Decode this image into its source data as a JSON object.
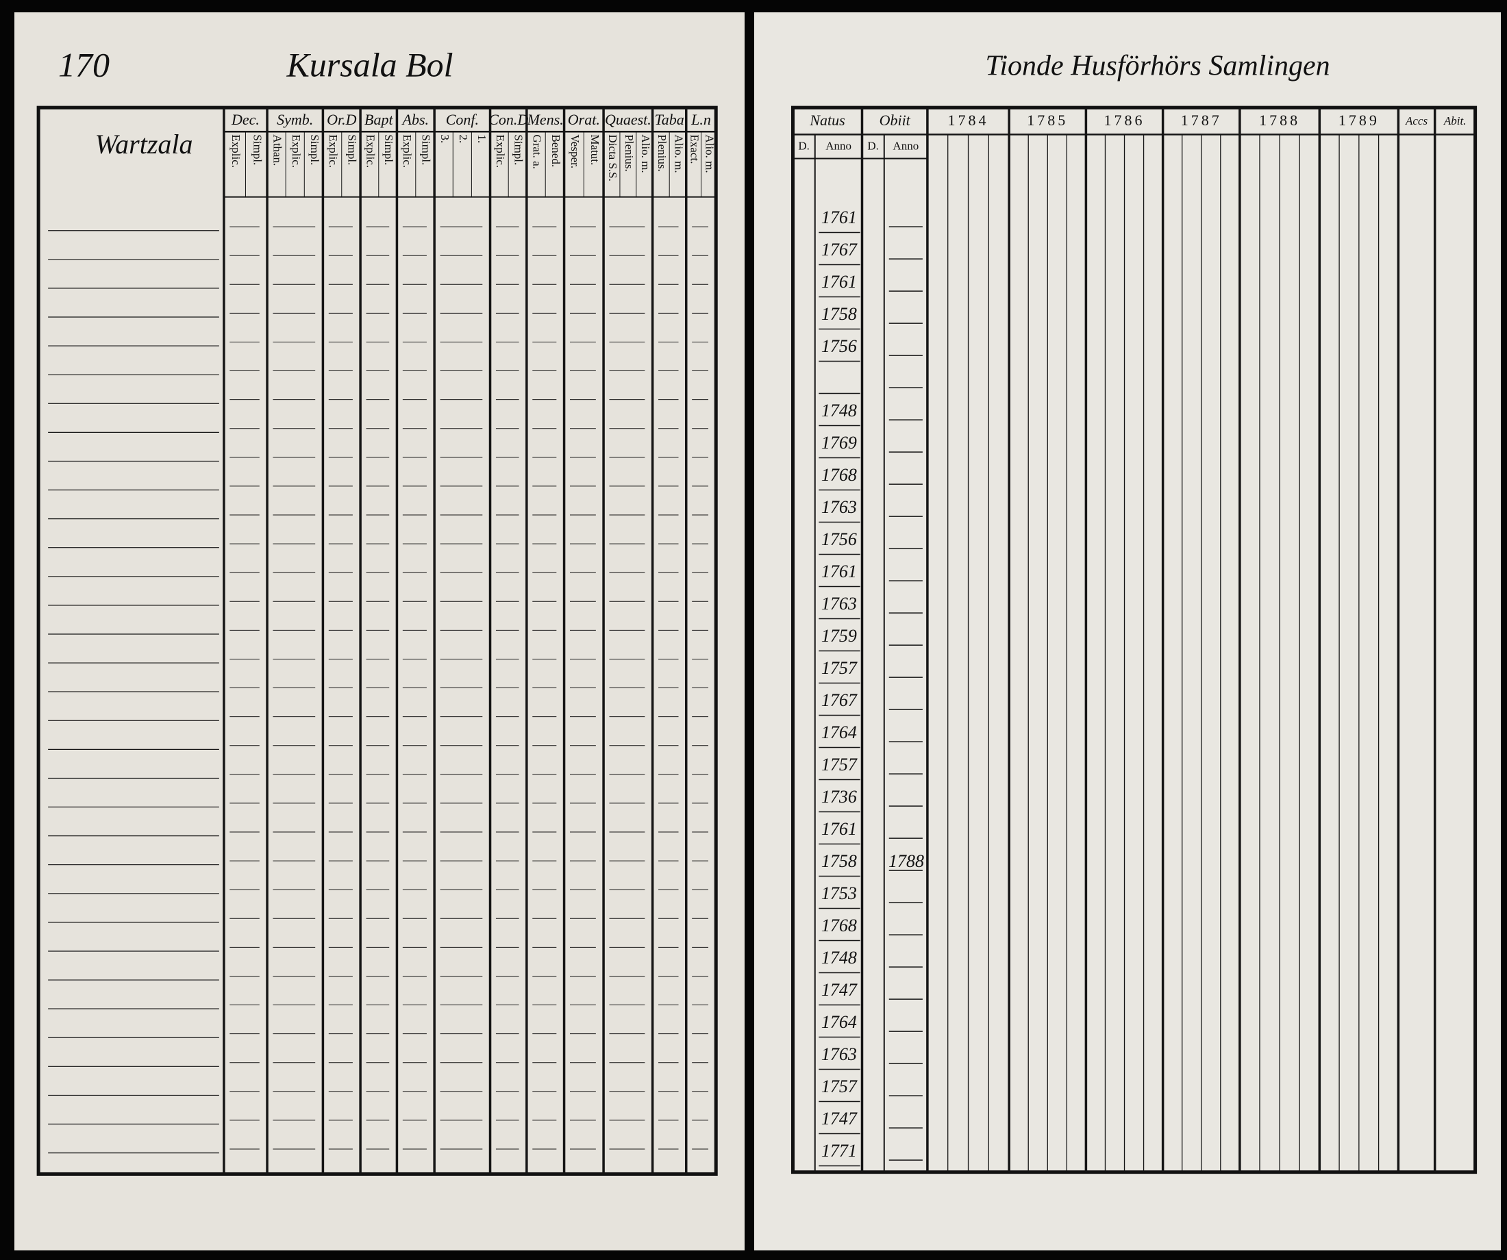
{
  "left_page": {
    "page_number": "170",
    "title": "Kursala Bol",
    "village": "Wartzala",
    "columns": [
      {
        "header": "Dec.",
        "sub": [
          "Explic.",
          "Simpl."
        ]
      },
      {
        "header": "Symb.",
        "sub": [
          "Athan.",
          "Explic.",
          "Simpl."
        ]
      },
      {
        "header": "Or.D",
        "sub": [
          "Explic.",
          "Simpl."
        ]
      },
      {
        "header": "Bapt",
        "sub": [
          "Explic.",
          "Simpl."
        ]
      },
      {
        "header": "Abs.",
        "sub": [
          "Explic.",
          "Simpl."
        ]
      },
      {
        "header": "Conf.",
        "sub": [
          "3.",
          "2.",
          "1."
        ]
      },
      {
        "header": "Con.D",
        "sub": [
          "Explic.",
          "Simpl."
        ]
      },
      {
        "header": "Mens.",
        "sub": [
          "Grat. a.",
          "Bened."
        ]
      },
      {
        "header": "Orat.",
        "sub": [
          "Vesper.",
          "Matut."
        ]
      },
      {
        "header": "Quaest.",
        "sub": [
          "Dicta S.S.",
          "Plenius.",
          "Alio. m."
        ]
      },
      {
        "header": "Taba",
        "sub": [
          "Plenius.",
          "Alio. m."
        ]
      },
      {
        "header": "L.n",
        "sub": [
          "Exact.",
          "Alio. m."
        ]
      }
    ]
  },
  "right_page": {
    "title": "Tionde Husförhörs Samlingen",
    "natus": {
      "header": "Natus",
      "sub": [
        "D.",
        "Anno"
      ]
    },
    "obiit": {
      "header": "Obiit",
      "sub": [
        "D.",
        "Anno"
      ]
    },
    "years": [
      "1784",
      "1785",
      "1786",
      "1787",
      "1788",
      "1789"
    ],
    "accs": "Accs",
    "abit": "Abit.",
    "rows": [
      {
        "natus": "1761"
      },
      {
        "natus": "1767"
      },
      {
        "natus": "1761"
      },
      {
        "natus": "1758"
      },
      {
        "natus": "1756"
      },
      null,
      {
        "natus": "1748"
      },
      {
        "natus": "1769"
      },
      {
        "natus": "1768"
      },
      {
        "natus": "1763"
      },
      {
        "natus": "1756"
      },
      {
        "natus": "1761"
      },
      {
        "natus": "1763"
      },
      {
        "natus": "1759"
      },
      {
        "natus": "1757"
      },
      {
        "natus": "1767"
      },
      {
        "natus": "1764"
      },
      {
        "natus": "1757"
      },
      {
        "natus": "1736"
      },
      {
        "natus": "1761"
      },
      {
        "natus": "1758",
        "obiit": "1788"
      },
      {
        "natus": "1753"
      },
      {
        "natus": "1768"
      },
      {
        "natus": "1748"
      },
      {
        "natus": "1747"
      },
      {
        "natus": "1764"
      },
      {
        "natus": "1763"
      },
      {
        "natus": "1757"
      },
      {
        "natus": "1747"
      },
      {
        "natus": "1771"
      }
    ]
  }
}
